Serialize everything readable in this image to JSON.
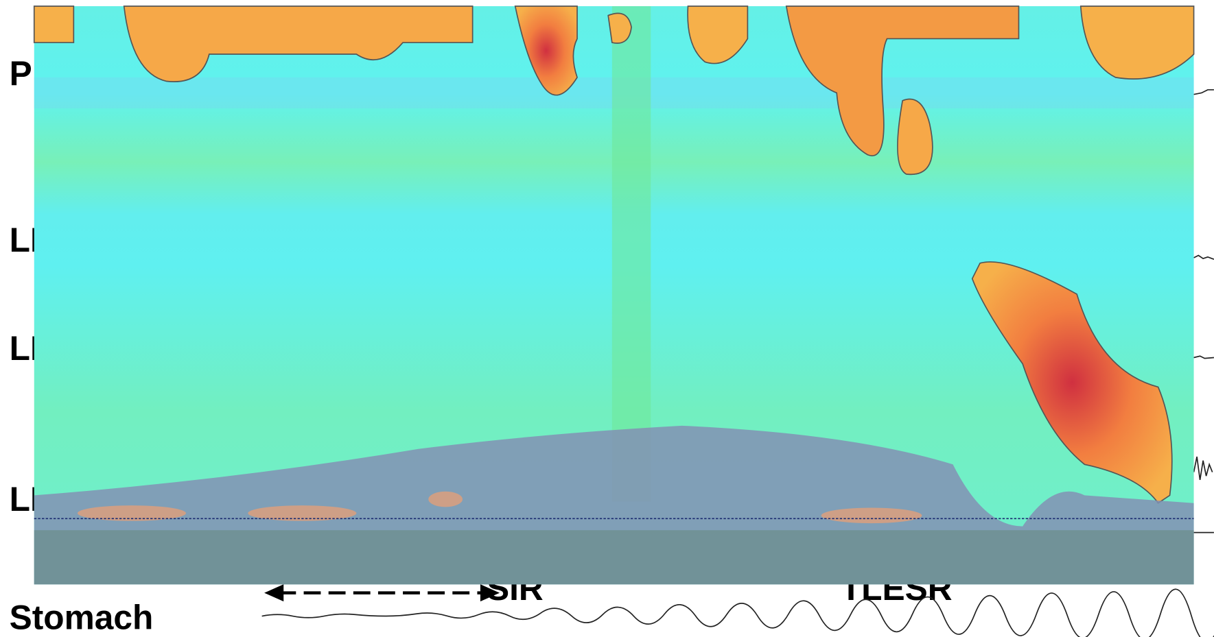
{
  "labels": {
    "upper": "P",
    "row_1": "LI",
    "row_2": "LI",
    "row_3": "LI",
    "stomach": "Stomach"
  },
  "events": {
    "left": "SIR",
    "right": "TLESR"
  }
}
